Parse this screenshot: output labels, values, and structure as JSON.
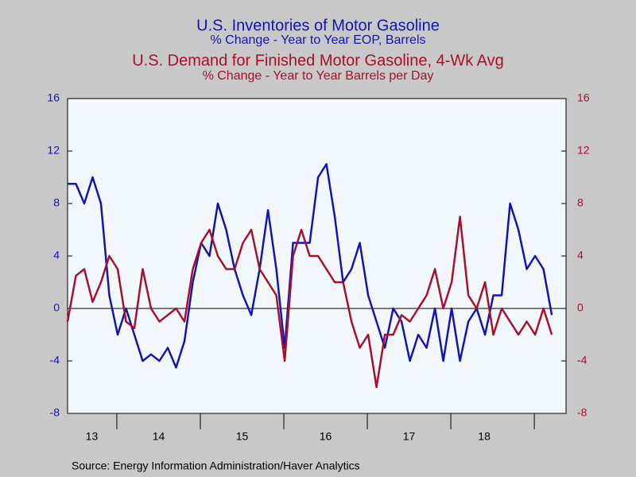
{
  "chart_data": {
    "type": "line",
    "title": "U.S. Inventories of Motor Gasoline",
    "subtitle": "% Change - Year to Year    EOP,  Barrels",
    "title2": "U.S. Demand for Finished Motor Gasoline, 4-Wk Avg",
    "subtitle2": "% Change - Year to Year      Barrels per Day",
    "source": "Source:  Energy Information Administration/Haver Analytics",
    "xlim": [
      2013.41,
      2019.38
    ],
    "xticks": [
      2014,
      2015,
      2016,
      2017,
      2018,
      2019
    ],
    "xlabels": [
      {
        "value": 2013.7,
        "label": "13"
      },
      {
        "value": 2014.5,
        "label": "14"
      },
      {
        "value": 2015.5,
        "label": "15"
      },
      {
        "value": 2016.5,
        "label": "16"
      },
      {
        "value": 2017.5,
        "label": "17"
      },
      {
        "value": 2018.4,
        "label": "18"
      }
    ],
    "ylim": [
      -8,
      16
    ],
    "yticks": [
      -8,
      -4,
      0,
      4,
      8,
      12,
      16
    ],
    "y2lim": [
      -8,
      16
    ],
    "y2ticks": [
      -8,
      -4,
      0,
      4,
      8,
      12,
      16
    ],
    "zero_line": true,
    "x": [
      2013.41,
      2013.51,
      2013.61,
      2013.71,
      2013.81,
      2013.91,
      2014.01,
      2014.11,
      2014.21,
      2014.31,
      2014.41,
      2014.51,
      2014.61,
      2014.71,
      2014.81,
      2014.91,
      2015.01,
      2015.11,
      2015.21,
      2015.31,
      2015.41,
      2015.51,
      2015.61,
      2015.71,
      2015.81,
      2015.91,
      2016.01,
      2016.11,
      2016.21,
      2016.31,
      2016.41,
      2016.51,
      2016.61,
      2016.71,
      2016.81,
      2016.91,
      2017.01,
      2017.11,
      2017.21,
      2017.31,
      2017.41,
      2017.51,
      2017.61,
      2017.71,
      2017.81,
      2017.91,
      2018.01,
      2018.11,
      2018.21,
      2018.31,
      2018.41,
      2018.51,
      2018.61,
      2018.71,
      2018.81,
      2018.91,
      2019.01,
      2019.11,
      2019.21
    ],
    "series": [
      {
        "name": "U.S. Inventories of Motor Gasoline",
        "color": "#1414b4",
        "axis": "y",
        "values": [
          9.5,
          9.5,
          8,
          10,
          8,
          1,
          -2,
          0,
          -2,
          -4,
          -3.5,
          -4,
          -3,
          -4.5,
          -2.5,
          2,
          5,
          4,
          8,
          6,
          3,
          1,
          -0.5,
          3,
          7.5,
          3,
          -3,
          5,
          5,
          5,
          10,
          11,
          7,
          2,
          3,
          5,
          1,
          -1,
          -3,
          0,
          -1,
          -4,
          -2,
          -3,
          0,
          -4,
          0,
          -4,
          -1,
          0,
          -2,
          1,
          1,
          8,
          6,
          3,
          4,
          3,
          -0.5
        ]
      },
      {
        "name": "U.S. Demand for Finished Motor Gasoline, 4-Wk Avg",
        "color": "#a8102c",
        "axis": "y2",
        "values": [
          -1,
          2.5,
          3,
          0.5,
          2,
          4,
          3,
          -1,
          -1.5,
          3,
          0,
          -1,
          -0.5,
          0,
          -1,
          3,
          5,
          6,
          4,
          3,
          3,
          5,
          6,
          3,
          2,
          1,
          -4,
          4,
          6,
          4,
          4,
          3,
          2,
          2,
          -1,
          -3,
          -2,
          -6,
          -2,
          -2,
          -0.5,
          -1,
          0,
          1,
          3,
          0,
          2,
          7,
          1,
          0,
          2,
          -2,
          0,
          -1,
          -2,
          -1,
          -2,
          0,
          -2
        ]
      }
    ]
  }
}
